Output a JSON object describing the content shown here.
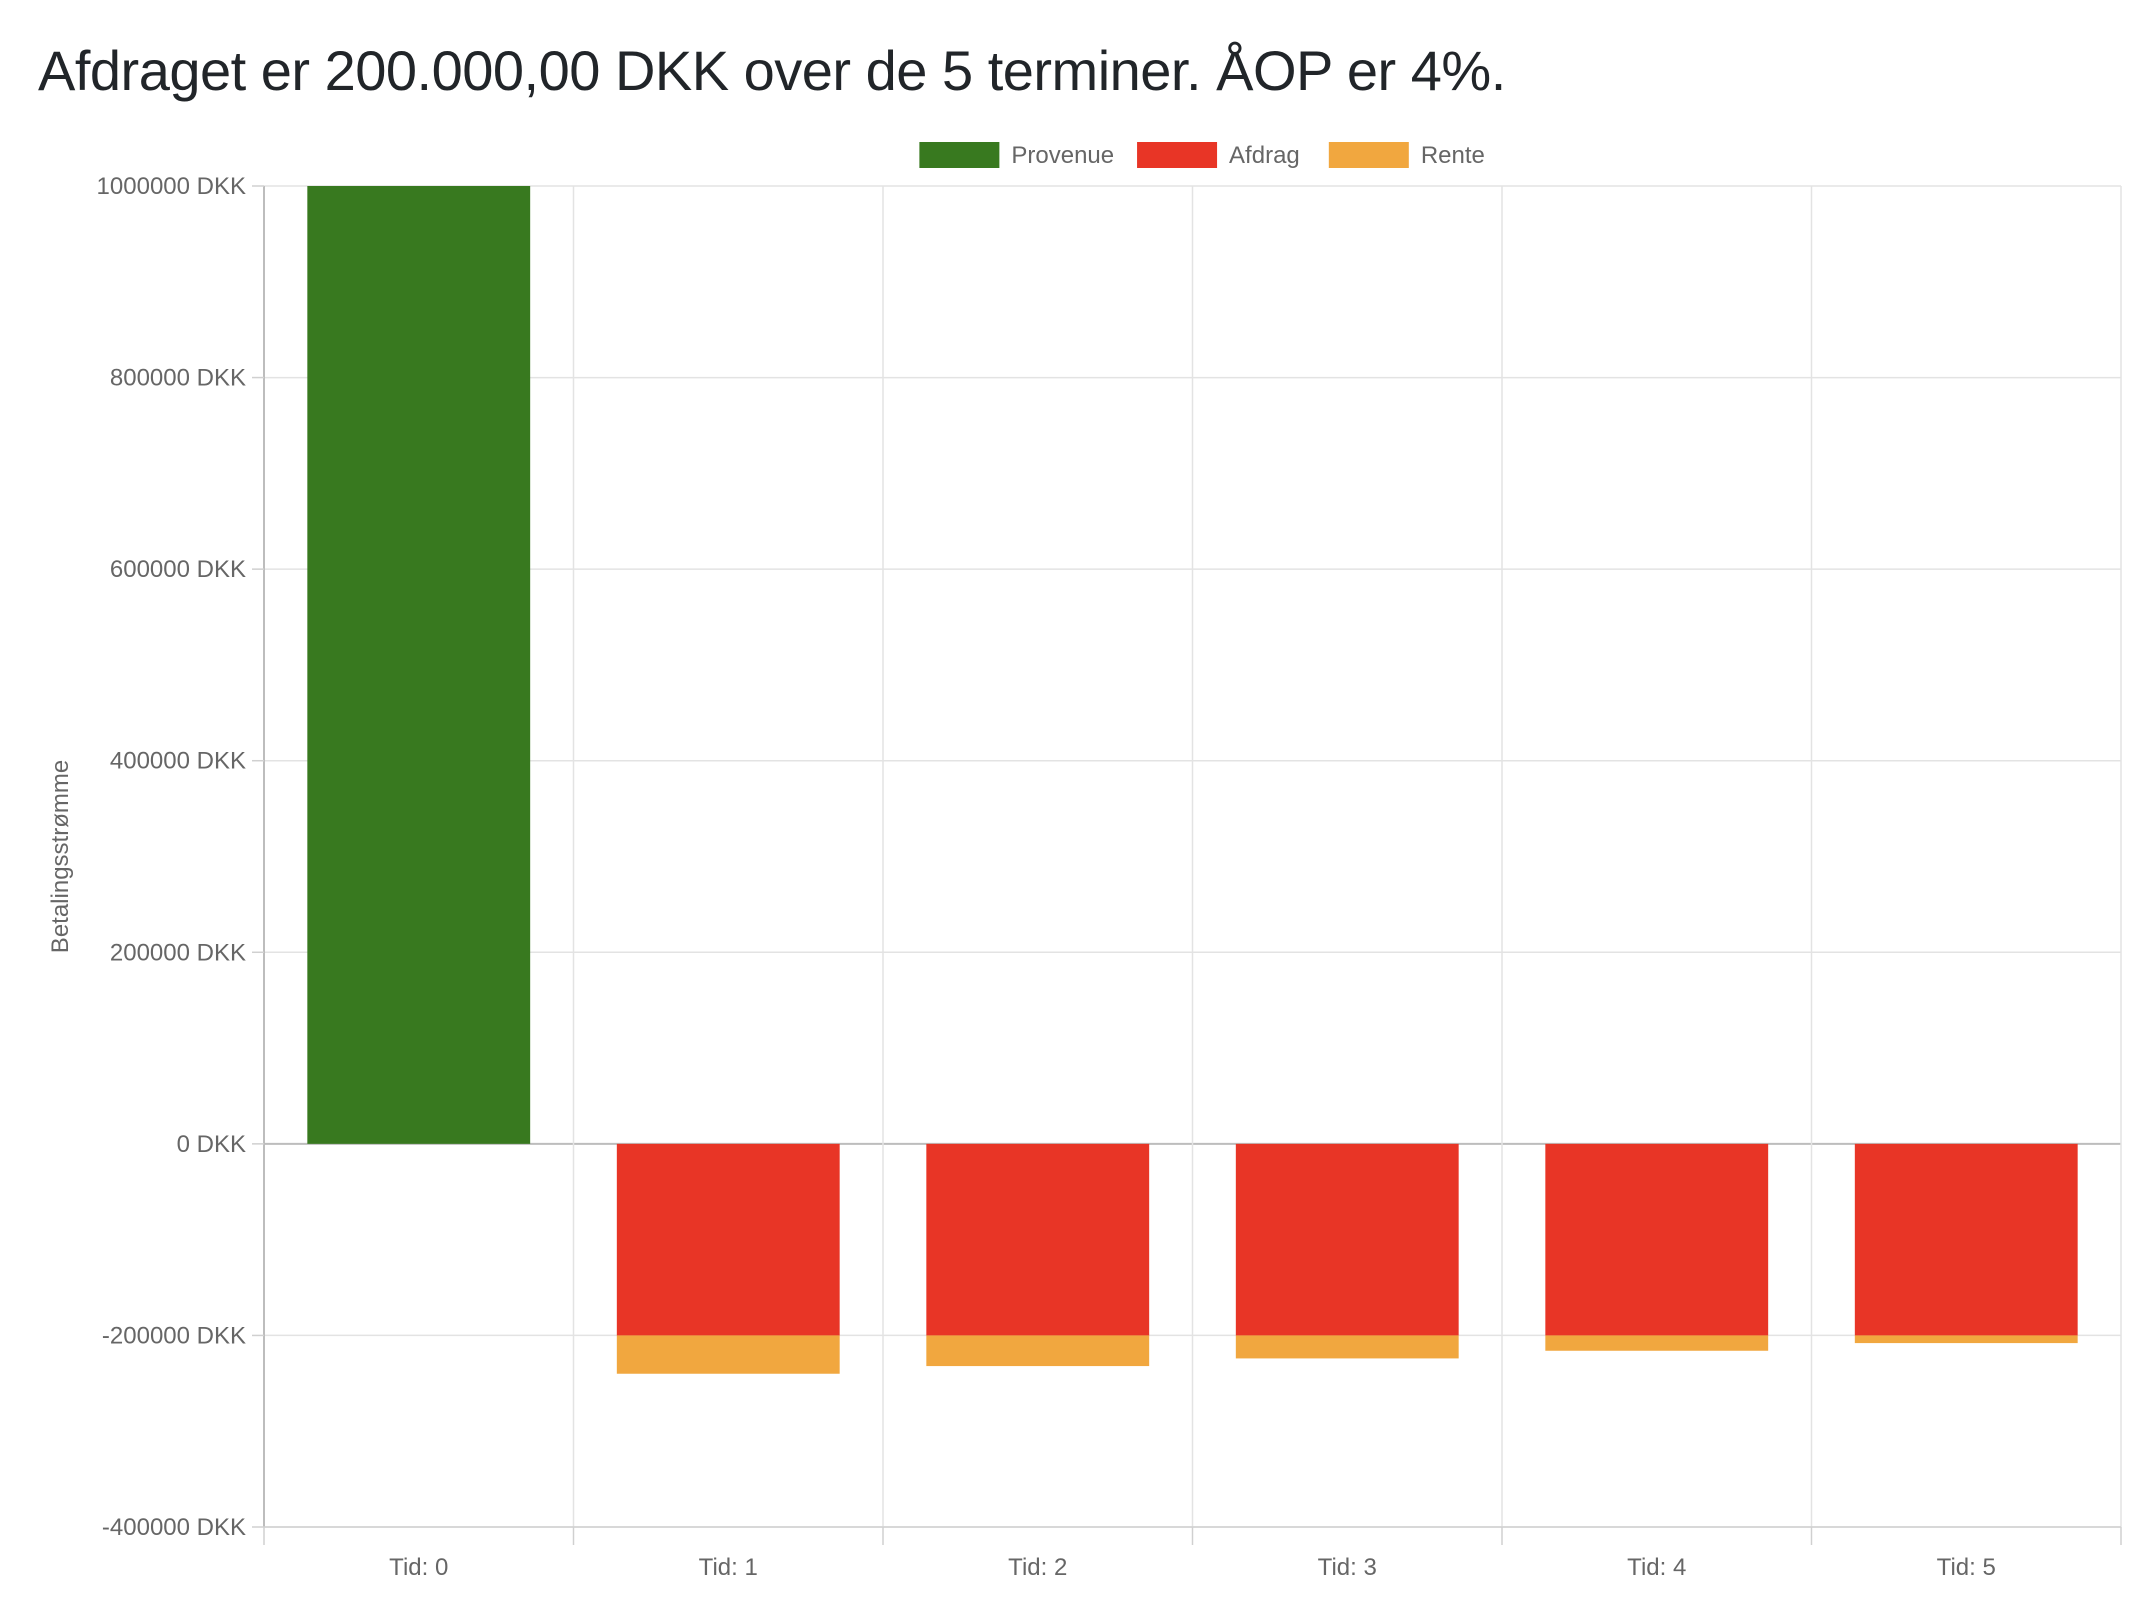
{
  "page": {
    "title": "Afdraget er 200.000,00 DKK over de 5 terminer. ÅOP er 4%."
  },
  "chart_data": {
    "type": "bar",
    "stacked": true,
    "title": "",
    "xlabel": "",
    "ylabel": "Betalingsstrømme",
    "y_unit_suffix": " DKK",
    "ylim": [
      -400000,
      1000000
    ],
    "y_ticks": [
      1000000,
      800000,
      600000,
      400000,
      200000,
      0,
      -200000,
      -400000
    ],
    "grid": true,
    "legend_position": "top",
    "categories": [
      "Tid: 0",
      "Tid: 1",
      "Tid: 2",
      "Tid: 3",
      "Tid: 4",
      "Tid: 5"
    ],
    "series": [
      {
        "name": "Provenue",
        "color": "#38791f",
        "values": [
          1000000,
          0,
          0,
          0,
          0,
          0
        ]
      },
      {
        "name": "Afdrag",
        "color": "#e83526",
        "values": [
          0,
          -200000,
          -200000,
          -200000,
          -200000,
          -200000
        ]
      },
      {
        "name": "Rente",
        "color": "#f1a73f",
        "values": [
          0,
          -40000,
          -32000,
          -24000,
          -16000,
          -8000
        ]
      }
    ]
  }
}
